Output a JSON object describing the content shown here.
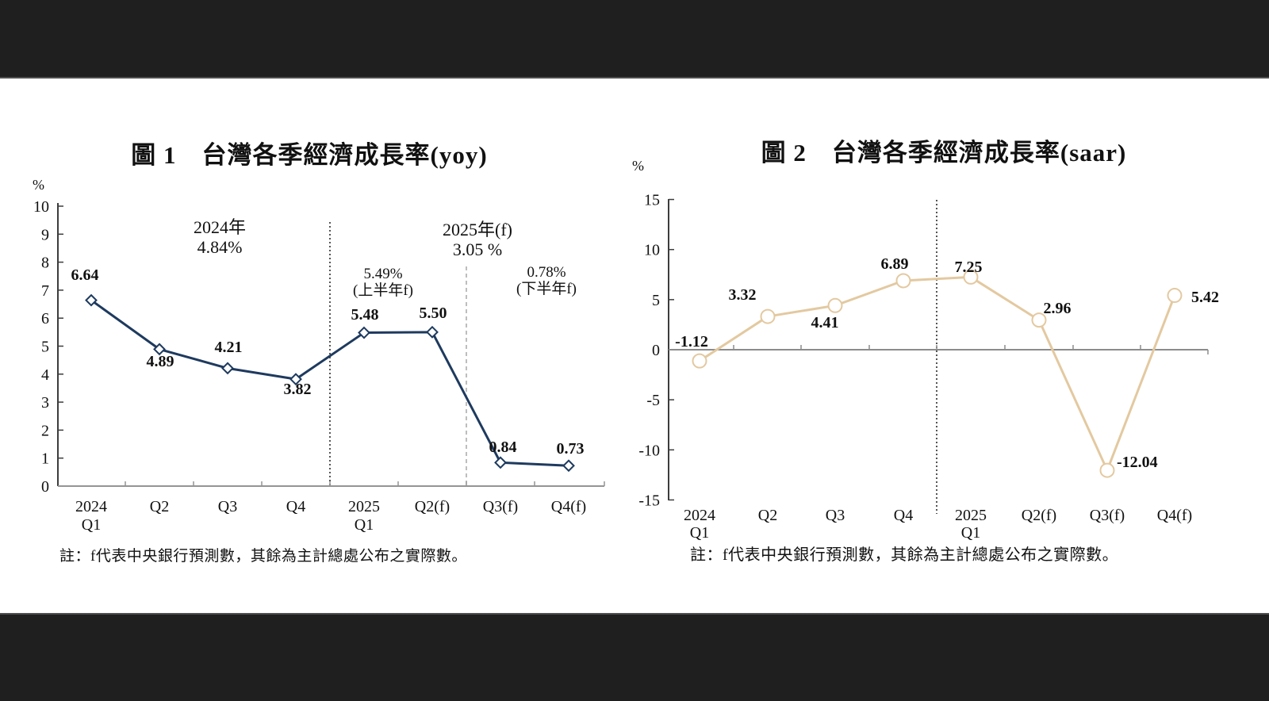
{
  "page": {
    "letterbox_color": "#1f1f20",
    "background_color": "#ffffff"
  },
  "figure1": {
    "title": "圖 1　台灣各季經濟成長率(yoy)",
    "unit_label": "%",
    "note": "註：f代表中央銀行預測數，其餘為主計總處公布之實際數。",
    "annotations": {
      "year2024": {
        "line1": "2024年",
        "line2": "4.84%"
      },
      "year2025": {
        "line1": "2025年(f)",
        "line2": "3.05 %"
      },
      "first_half": {
        "line1": "5.49%",
        "line2": "(上半年f)"
      },
      "second_half": {
        "line1": "0.78%",
        "line2": "(下半年f)"
      }
    }
  },
  "figure2": {
    "title": "圖 2　台灣各季經濟成長率(saar)",
    "unit_label": "%",
    "note": "註：f代表中央銀行預測數，其餘為主計總處公布之實際數。"
  },
  "chart_data": [
    {
      "type": "line",
      "title": "圖 1　台灣各季經濟成長率(yoy)",
      "xlabel": "",
      "ylabel": "%",
      "ylim": [
        0,
        10
      ],
      "yticks": [
        0,
        1,
        2,
        3,
        4,
        5,
        6,
        7,
        8,
        9,
        10
      ],
      "grid": false,
      "legend": "none",
      "categories": [
        [
          "2024",
          "Q1"
        ],
        [
          "Q2"
        ],
        [
          "Q3"
        ],
        [
          "Q4"
        ],
        [
          "2025",
          "Q1"
        ],
        [
          "Q2(f)"
        ],
        [
          "Q3(f)"
        ],
        [
          "Q4(f)"
        ]
      ],
      "series": [
        {
          "name": "台灣各季經濟成長率(yoy)",
          "values": [
            6.64,
            4.89,
            4.21,
            3.82,
            5.48,
            5.5,
            0.84,
            0.73
          ],
          "color": "#1e3a5f",
          "marker": "diamond"
        }
      ],
      "dividers": [
        {
          "between_categories": [
            "Q4",
            "2025 Q1"
          ],
          "style": "dotted"
        },
        {
          "between_categories": [
            "Q2(f)",
            "Q3(f)"
          ],
          "style": "dashed"
        }
      ],
      "annotations": [
        "2024年 4.84%",
        "2025年(f) 3.05 %",
        "5.49% (上半年f)",
        "0.78% (下半年f)"
      ],
      "note": "註：f代表中央銀行預測數，其餘為主計總處公布之實際數。"
    },
    {
      "type": "line",
      "title": "圖 2　台灣各季經濟成長率(saar)",
      "xlabel": "",
      "ylabel": "%",
      "ylim": [
        -15,
        15
      ],
      "yticks": [
        15,
        10,
        5,
        0,
        -5,
        -10,
        -15
      ],
      "grid": false,
      "legend": "none",
      "categories": [
        [
          "2024",
          "Q1"
        ],
        [
          "Q2"
        ],
        [
          "Q3"
        ],
        [
          "Q4"
        ],
        [
          "2025",
          "Q1"
        ],
        [
          "Q2(f)"
        ],
        [
          "Q3(f)"
        ],
        [
          "Q4(f)"
        ]
      ],
      "series": [
        {
          "name": "台灣各季經濟成長率(saar)",
          "values": [
            -1.12,
            3.32,
            4.41,
            6.89,
            7.25,
            2.96,
            -12.04,
            5.42
          ],
          "color": "#e3c9a0",
          "marker": "circle"
        }
      ],
      "dividers": [
        {
          "between_categories": [
            "Q4",
            "2025 Q1"
          ],
          "style": "dotted"
        }
      ],
      "annotations": [],
      "note": "註：f代表中央銀行預測數，其餘為主計總處公布之實際數。"
    }
  ]
}
